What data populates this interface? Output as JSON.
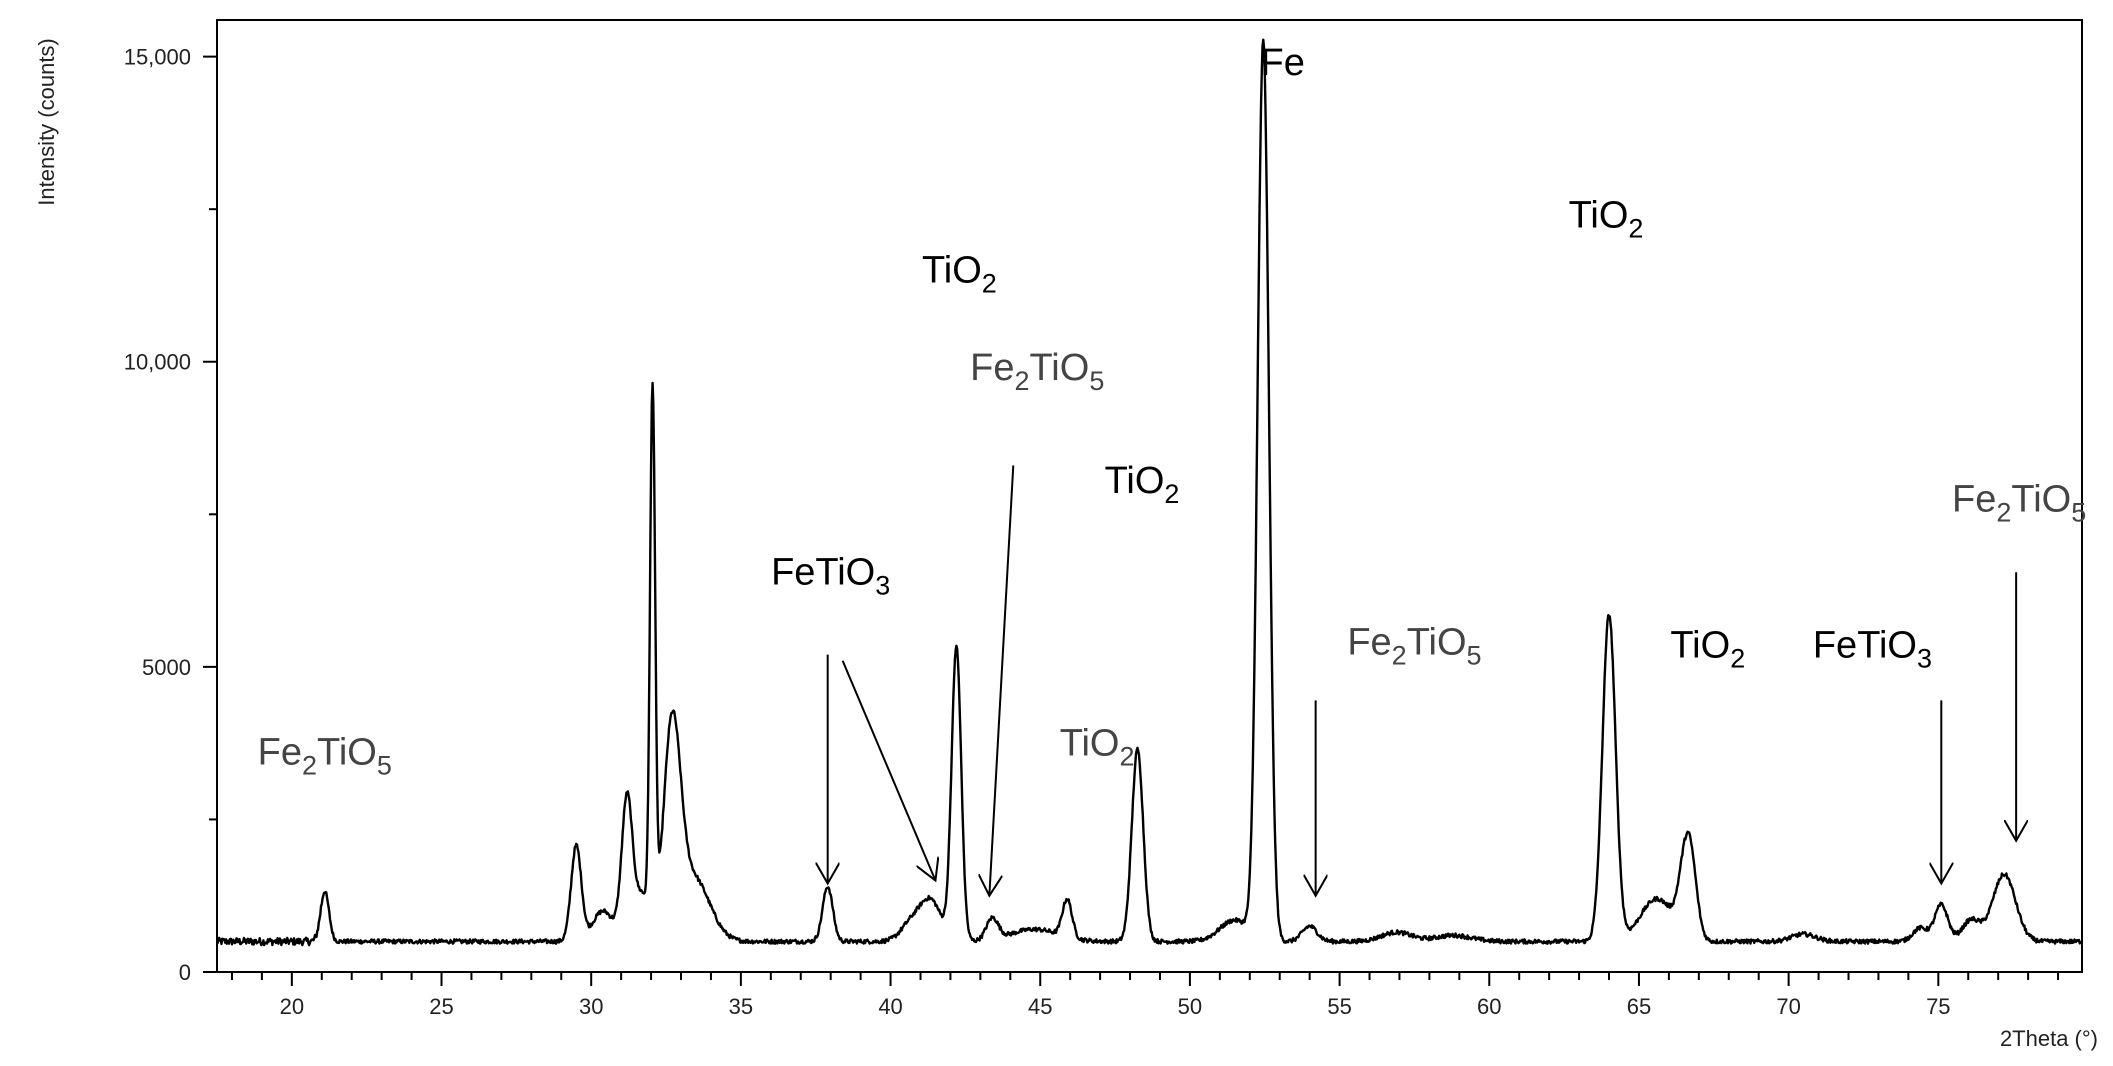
{
  "chart_data": {
    "type": "line",
    "xlabel": "2Theta (°)",
    "ylabel": "Intensity (counts)",
    "xlim": [
      17.5,
      79.8
    ],
    "ylim": [
      0,
      15600
    ],
    "x_ticks": [
      20,
      25,
      30,
      35,
      40,
      45,
      50,
      55,
      60,
      65,
      70,
      75
    ],
    "x_tick_labels": [
      "20",
      "25",
      "30",
      "35",
      "40",
      "45",
      "50",
      "55",
      "60",
      "65",
      "70",
      "75"
    ],
    "y_ticks": [
      0,
      5000,
      10000,
      15000
    ],
    "y_tick_labels": [
      "0",
      "5000",
      "10,000",
      "15,000"
    ],
    "grid": false,
    "baseline": 500,
    "peaks": [
      {
        "x": 21.1,
        "height": 820,
        "width": 0.14
      },
      {
        "x": 29.5,
        "height": 1560,
        "width": 0.17
      },
      {
        "x": 30.4,
        "height": 500,
        "width": 0.35
      },
      {
        "x": 31.2,
        "height": 2350,
        "width": 0.18
      },
      {
        "x": 31.7,
        "height": 750,
        "width": 0.22
      },
      {
        "x": 32.05,
        "height": 8700,
        "width": 0.085
      },
      {
        "x": 32.7,
        "height": 3300,
        "width": 0.28
      },
      {
        "x": 33.4,
        "height": 1050,
        "width": 0.55
      },
      {
        "x": 37.9,
        "height": 900,
        "width": 0.17
      },
      {
        "x": 40.7,
        "height": 300,
        "width": 0.35
      },
      {
        "x": 41.35,
        "height": 650,
        "width": 0.35
      },
      {
        "x": 42.2,
        "height": 4800,
        "width": 0.16
      },
      {
        "x": 43.4,
        "height": 350,
        "width": 0.2
      },
      {
        "x": 44.8,
        "height": 200,
        "width": 0.8
      },
      {
        "x": 45.9,
        "height": 620,
        "width": 0.16
      },
      {
        "x": 48.25,
        "height": 3150,
        "width": 0.19
      },
      {
        "x": 51.5,
        "height": 350,
        "width": 0.5
      },
      {
        "x": 52.45,
        "height": 14700,
        "width": 0.19
      },
      {
        "x": 54.0,
        "height": 250,
        "width": 0.25
      },
      {
        "x": 56.9,
        "height": 150,
        "width": 0.5
      },
      {
        "x": 58.8,
        "height": 100,
        "width": 0.6
      },
      {
        "x": 64.0,
        "height": 5350,
        "width": 0.22
      },
      {
        "x": 65.6,
        "height": 700,
        "width": 0.55
      },
      {
        "x": 66.7,
        "height": 1400,
        "width": 0.22
      },
      {
        "x": 66.45,
        "height": 500,
        "width": 0.2
      },
      {
        "x": 70.5,
        "height": 120,
        "width": 0.4
      },
      {
        "x": 74.4,
        "height": 220,
        "width": 0.25
      },
      {
        "x": 75.1,
        "height": 600,
        "width": 0.22
      },
      {
        "x": 76.1,
        "height": 350,
        "width": 0.3
      },
      {
        "x": 77.2,
        "height": 1100,
        "width": 0.38
      }
    ],
    "annotations": [
      {
        "main": "Fe",
        "sub1": "2",
        "mid": "TiO",
        "sub2": "5",
        "x": 21.1,
        "y": 3400,
        "tone": "gray"
      },
      {
        "main": "FeTiO",
        "sub1": "3",
        "mid": "",
        "sub2": "",
        "x": 38.0,
        "y": 6350,
        "tone": "black"
      },
      {
        "main": "TiO",
        "sub1": "2",
        "mid": "",
        "sub2": "",
        "x": 42.3,
        "y": 11300,
        "tone": "black"
      },
      {
        "main": "Fe",
        "sub1": "2",
        "mid": "TiO",
        "sub2": "5",
        "x": 44.9,
        "y": 9700,
        "tone": "gray"
      },
      {
        "main": "TiO",
        "sub1": "2",
        "mid": "",
        "sub2": "",
        "x": 46.9,
        "y": 3550,
        "tone": "gray"
      },
      {
        "main": "TiO",
        "sub1": "2",
        "mid": "",
        "sub2": "",
        "x": 48.4,
        "y": 7850,
        "tone": "black"
      },
      {
        "main": "Fe",
        "sub1": "",
        "mid": "",
        "sub2": "",
        "x": 53.1,
        "y": 14700,
        "tone": "black"
      },
      {
        "main": "Fe",
        "sub1": "2",
        "mid": "TiO",
        "sub2": "5",
        "x": 57.5,
        "y": 5200,
        "tone": "gray"
      },
      {
        "main": "TiO",
        "sub1": "2",
        "mid": "",
        "sub2": "",
        "x": 63.9,
        "y": 12200,
        "tone": "black"
      },
      {
        "main": "TiO",
        "sub1": "2",
        "mid": "",
        "sub2": "",
        "x": 67.3,
        "y": 5150,
        "tone": "black"
      },
      {
        "main": "FeTiO",
        "sub1": "3",
        "mid": "",
        "sub2": "",
        "x": 72.8,
        "y": 5150,
        "tone": "black"
      },
      {
        "main": "Fe",
        "sub1": "2",
        "mid": "TiO",
        "sub2": "5",
        "x": 77.7,
        "y": 7550,
        "tone": "gray"
      }
    ],
    "arrows": [
      {
        "x1": 37.9,
        "y1": 5200,
        "x2": 37.9,
        "y2": 1450
      },
      {
        "x1": 38.4,
        "y1": 5100,
        "x2": 41.5,
        "y2": 1500
      },
      {
        "x1": 44.1,
        "y1": 8300,
        "x2": 43.3,
        "y2": 1250
      },
      {
        "x1": 54.2,
        "y1": 4450,
        "x2": 54.2,
        "y2": 1250
      },
      {
        "x1": 75.1,
        "y1": 4450,
        "x2": 75.1,
        "y2": 1450
      },
      {
        "x1": 77.6,
        "y1": 6550,
        "x2": 77.6,
        "y2": 2150
      }
    ]
  }
}
